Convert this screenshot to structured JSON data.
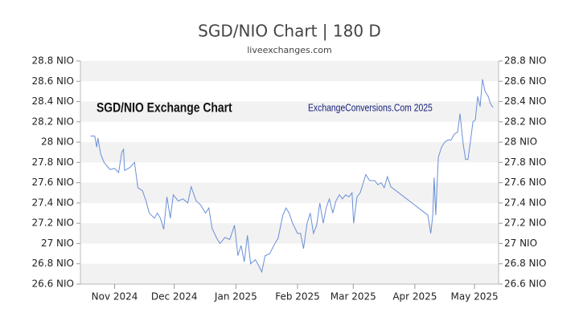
{
  "chart_data": {
    "type": "line",
    "title": "SGD/NIO Chart | 180 D",
    "subtitle": "liveexchanges.com",
    "annotations": [
      "SGD/NIO Exchange Chart",
      "ExchangeConversions.Com 2025"
    ],
    "grid": true,
    "color": "#6a8fd8",
    "xlim": [
      13.8,
      224.1
    ],
    "xticks": [
      {
        "value": 31,
        "label": "Nov 2024"
      },
      {
        "value": 61,
        "label": "Dec 2024"
      },
      {
        "value": 92,
        "label": "Jan 2025"
      },
      {
        "value": 123,
        "label": "Feb 2025"
      },
      {
        "value": 151,
        "label": "Mar 2025"
      },
      {
        "value": 182,
        "label": "Apr 2025"
      },
      {
        "value": 212,
        "label": "May 2025"
      }
    ],
    "ylim": [
      26.6,
      28.8
    ],
    "yticks": [
      {
        "value": 26.6,
        "label": "26.6 NIO"
      },
      {
        "value": 26.8,
        "label": "26.8 NIO"
      },
      {
        "value": 27.0,
        "label": "27 NIO"
      },
      {
        "value": 27.2,
        "label": "27.2 NIO"
      },
      {
        "value": 27.4,
        "label": "27.4 NIO"
      },
      {
        "value": 27.6,
        "label": "27.6 NIO"
      },
      {
        "value": 27.8,
        "label": "27.8 NIO"
      },
      {
        "value": 28.0,
        "label": "28 NIO"
      },
      {
        "value": 28.2,
        "label": "28.2 NIO"
      },
      {
        "value": 28.4,
        "label": "28.4 NIO"
      },
      {
        "value": 28.6,
        "label": "28.6 NIO"
      },
      {
        "value": 28.8,
        "label": "28.8 NIO"
      }
    ],
    "x": [
      18.9,
      21,
      22,
      22.6,
      24,
      25.7,
      28.6,
      31,
      33,
      34.6,
      35.5,
      36,
      38.7,
      41,
      42.7,
      45,
      46.8,
      48.4,
      51,
      52.5,
      54,
      55.7,
      57.3,
      59,
      60.5,
      63,
      65.4,
      67.8,
      69.5,
      72,
      74.3,
      76.7,
      78.4,
      80,
      82.4,
      84,
      86.5,
      88.9,
      91.3,
      93,
      94.6,
      96.2,
      97.8,
      99.4,
      101.8,
      103.5,
      105,
      106.7,
      109,
      111.6,
      113.2,
      115.6,
      117.2,
      118.8,
      120.5,
      123,
      124.5,
      126,
      127.8,
      129.4,
      131,
      132.6,
      134.2,
      135.9,
      137.5,
      139,
      140.7,
      142.3,
      144,
      145.6,
      147.2,
      148.8,
      150.4,
      151.2,
      152.9,
      154.5,
      156.1,
      157.3,
      159.3,
      161.8,
      163.4,
      165,
      166.6,
      168.2,
      169.9,
      188.5,
      190,
      191,
      191.7,
      192.5,
      193.8,
      195.4,
      197,
      198.6,
      200.2,
      201.9,
      203.5,
      204.7,
      206.3,
      207.5,
      208.7,
      209.9,
      211.2,
      212.4,
      213.6,
      214.8,
      216,
      217.3,
      218.9,
      220,
      221.3
    ],
    "values": [
      28.06,
      28.06,
      27.95,
      28.04,
      27.88,
      27.8,
      27.73,
      27.74,
      27.7,
      27.9,
      27.93,
      27.72,
      27.75,
      27.8,
      27.55,
      27.52,
      27.42,
      27.3,
      27.25,
      27.3,
      27.25,
      27.14,
      27.46,
      27.25,
      27.48,
      27.42,
      27.44,
      27.4,
      27.56,
      27.42,
      27.38,
      27.3,
      27.35,
      27.15,
      27.05,
      27.0,
      27.06,
      27.04,
      27.18,
      26.88,
      26.98,
      26.82,
      27.08,
      26.8,
      26.84,
      26.78,
      26.72,
      26.88,
      26.9,
      27.0,
      27.05,
      27.28,
      27.35,
      27.3,
      27.2,
      27.1,
      27.1,
      26.95,
      27.2,
      27.3,
      27.1,
      27.18,
      27.4,
      27.2,
      27.36,
      27.44,
      27.3,
      27.42,
      27.48,
      27.44,
      27.48,
      27.46,
      27.5,
      27.2,
      27.46,
      27.5,
      27.6,
      27.68,
      27.62,
      27.62,
      27.58,
      27.6,
      27.55,
      27.66,
      27.56,
      27.28,
      27.1,
      27.28,
      27.65,
      27.28,
      27.85,
      27.95,
      28.0,
      28.02,
      28.02,
      28.08,
      28.1,
      28.28,
      27.98,
      27.83,
      27.83,
      28.0,
      28.2,
      28.22,
      28.45,
      28.35,
      28.62,
      28.5,
      28.45,
      28.38,
      28.34
    ]
  }
}
